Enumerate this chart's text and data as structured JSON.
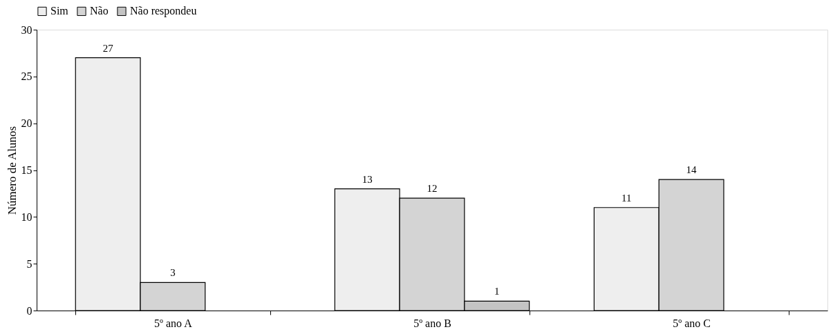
{
  "chart_data": {
    "type": "bar",
    "ylabel": "Número de Alunos",
    "categories": [
      "5º ano A",
      "5º ano B",
      "5º ano C"
    ],
    "series": [
      {
        "name": "Sim",
        "color": "#eeeeee",
        "values": [
          27,
          13,
          11
        ]
      },
      {
        "name": "Não",
        "color": "#d4d4d4",
        "values": [
          3,
          12,
          14
        ]
      },
      {
        "name": "Não respondeu",
        "color": "#c4c4c4",
        "values": [
          null,
          1,
          null
        ]
      }
    ],
    "ylim": [
      0,
      30
    ],
    "yticks": [
      0,
      5,
      10,
      15,
      20,
      25,
      30
    ],
    "grid": false,
    "legend": "top",
    "data_labels": true
  }
}
